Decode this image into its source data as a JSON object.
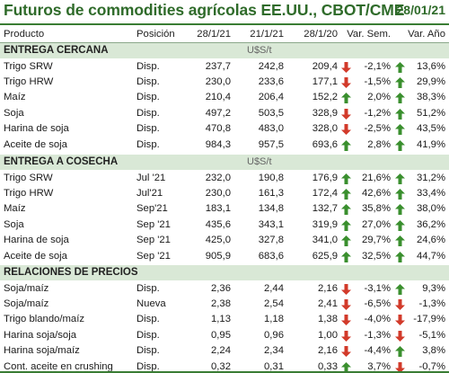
{
  "title": "Futuros de commodities agrícolas EE.UU., CBOT/CME",
  "date": "28/01/21",
  "colors": {
    "accent": "#2f6b2a",
    "section_bg": "#d9e8d6",
    "up": "#3a8f2e",
    "down": "#d23a2a"
  },
  "header": {
    "product": "Producto",
    "position": "Posición",
    "col1": "28/1/21",
    "col2": "21/1/21",
    "col3": "28/1/20",
    "var_week": "Var. Sem.",
    "var_year": "Var. Año"
  },
  "sections": [
    {
      "name": "ENTREGA CERCANA",
      "unit": "U$S/t",
      "rows": [
        {
          "product": "Trigo SRW",
          "position": "Disp.",
          "v1": "237,7",
          "v2": "242,8",
          "v3": "209,4",
          "w_dir": "down",
          "w": "-2,1%",
          "y_dir": "up",
          "y": "13,6%"
        },
        {
          "product": "Trigo HRW",
          "position": "Disp.",
          "v1": "230,0",
          "v2": "233,6",
          "v3": "177,1",
          "w_dir": "down",
          "w": "-1,5%",
          "y_dir": "up",
          "y": "29,9%"
        },
        {
          "product": "Maíz",
          "position": "Disp.",
          "v1": "210,4",
          "v2": "206,4",
          "v3": "152,2",
          "w_dir": "up",
          "w": "2,0%",
          "y_dir": "up",
          "y": "38,3%"
        },
        {
          "product": "Soja",
          "position": "Disp.",
          "v1": "497,2",
          "v2": "503,5",
          "v3": "328,9",
          "w_dir": "down",
          "w": "-1,2%",
          "y_dir": "up",
          "y": "51,2%"
        },
        {
          "product": "Harina de soja",
          "position": "Disp.",
          "v1": "470,8",
          "v2": "483,0",
          "v3": "328,0",
          "w_dir": "down",
          "w": "-2,5%",
          "y_dir": "up",
          "y": "43,5%"
        },
        {
          "product": "Aceite de soja",
          "position": "Disp.",
          "v1": "984,3",
          "v2": "957,5",
          "v3": "693,6",
          "w_dir": "up",
          "w": "2,8%",
          "y_dir": "up",
          "y": "41,9%"
        }
      ]
    },
    {
      "name": "ENTREGA A COSECHA",
      "unit": "U$S/t",
      "rows": [
        {
          "product": "Trigo SRW",
          "position": "Jul '21",
          "v1": "232,0",
          "v2": "190,8",
          "v3": "176,9",
          "w_dir": "up",
          "w": "21,6%",
          "y_dir": "up",
          "y": "31,2%"
        },
        {
          "product": "Trigo HRW",
          "position": "Jul'21",
          "v1": "230,0",
          "v2": "161,3",
          "v3": "172,4",
          "w_dir": "up",
          "w": "42,6%",
          "y_dir": "up",
          "y": "33,4%"
        },
        {
          "product": "Maíz",
          "position": "Sep'21",
          "v1": "183,1",
          "v2": "134,8",
          "v3": "132,7",
          "w_dir": "up",
          "w": "35,8%",
          "y_dir": "up",
          "y": "38,0%"
        },
        {
          "product": "Soja",
          "position": "Sep '21",
          "v1": "435,6",
          "v2": "343,1",
          "v3": "319,9",
          "w_dir": "up",
          "w": "27,0%",
          "y_dir": "up",
          "y": "36,2%"
        },
        {
          "product": "Harina de soja",
          "position": "Sep '21",
          "v1": "425,0",
          "v2": "327,8",
          "v3": "341,0",
          "w_dir": "up",
          "w": "29,7%",
          "y_dir": "up",
          "y": "24,6%"
        },
        {
          "product": "Aceite de soja",
          "position": "Sep '21",
          "v1": "905,9",
          "v2": "683,6",
          "v3": "625,9",
          "w_dir": "up",
          "w": "32,5%",
          "y_dir": "up",
          "y": "44,7%"
        }
      ]
    },
    {
      "name": "RELACIONES DE PRECIOS",
      "unit": "",
      "rows": [
        {
          "product": "Soja/maíz",
          "position": "Disp.",
          "v1": "2,36",
          "v2": "2,44",
          "v3": "2,16",
          "w_dir": "down",
          "w": "-3,1%",
          "y_dir": "up",
          "y": "9,3%"
        },
        {
          "product": "Soja/maíz",
          "position": "Nueva",
          "v1": "2,38",
          "v2": "2,54",
          "v3": "2,41",
          "w_dir": "down",
          "w": "-6,5%",
          "y_dir": "down",
          "y": "-1,3%"
        },
        {
          "product": "Trigo blando/maíz",
          "position": "Disp.",
          "v1": "1,13",
          "v2": "1,18",
          "v3": "1,38",
          "w_dir": "down",
          "w": "-4,0%",
          "y_dir": "down",
          "y": "-17,9%"
        },
        {
          "product": "Harina soja/soja",
          "position": "Disp.",
          "v1": "0,95",
          "v2": "0,96",
          "v3": "1,00",
          "w_dir": "down",
          "w": "-1,3%",
          "y_dir": "down",
          "y": "-5,1%"
        },
        {
          "product": "Harina soja/maíz",
          "position": "Disp.",
          "v1": "2,24",
          "v2": "2,34",
          "v3": "2,16",
          "w_dir": "down",
          "w": "-4,4%",
          "y_dir": "up",
          "y": "3,8%"
        },
        {
          "product": "Cont. aceite en crushing",
          "position": "Disp.",
          "v1": "0,32",
          "v2": "0,31",
          "v3": "0,33",
          "w_dir": "up",
          "w": "3,7%",
          "y_dir": "down",
          "y": "-0,7%"
        }
      ]
    }
  ]
}
